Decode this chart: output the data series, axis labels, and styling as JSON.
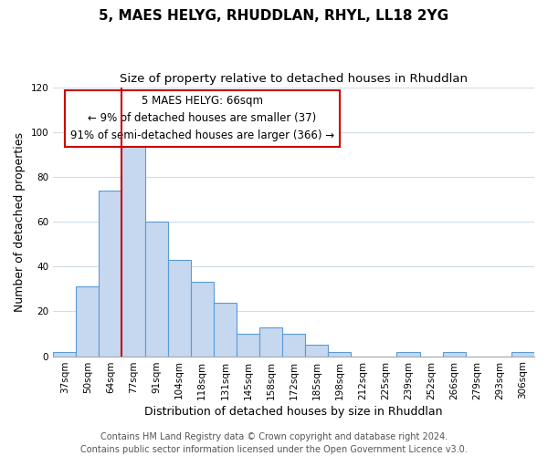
{
  "title": "5, MAES HELYG, RHUDDLAN, RHYL, LL18 2YG",
  "subtitle": "Size of property relative to detached houses in Rhuddlan",
  "xlabel": "Distribution of detached houses by size in Rhuddlan",
  "ylabel": "Number of detached properties",
  "categories": [
    "37sqm",
    "50sqm",
    "64sqm",
    "77sqm",
    "91sqm",
    "104sqm",
    "118sqm",
    "131sqm",
    "145sqm",
    "158sqm",
    "172sqm",
    "185sqm",
    "198sqm",
    "212sqm",
    "225sqm",
    "239sqm",
    "252sqm",
    "266sqm",
    "279sqm",
    "293sqm",
    "306sqm"
  ],
  "values": [
    2,
    31,
    74,
    95,
    60,
    43,
    33,
    24,
    10,
    13,
    10,
    5,
    2,
    0,
    0,
    2,
    0,
    2,
    0,
    0,
    2
  ],
  "bar_color": "#c5d8f0",
  "bar_edge_color": "#5b9bd5",
  "vline_bar_index": 2,
  "vline_color": "#cc0000",
  "annotation_title": "5 MAES HELYG: 66sqm",
  "annotation_line1": "← 9% of detached houses are smaller (37)",
  "annotation_line2": "91% of semi-detached houses are larger (366) →",
  "annotation_box_color": "#ffffff",
  "annotation_box_edge": "#cc0000",
  "ylim": [
    0,
    120
  ],
  "yticks": [
    0,
    20,
    40,
    60,
    80,
    100,
    120
  ],
  "footer_line1": "Contains HM Land Registry data © Crown copyright and database right 2024.",
  "footer_line2": "Contains public sector information licensed under the Open Government Licence v3.0.",
  "background_color": "#ffffff",
  "grid_color": "#d0dce8",
  "title_fontsize": 11,
  "subtitle_fontsize": 9.5,
  "axis_label_fontsize": 9,
  "tick_fontsize": 7.5,
  "footer_fontsize": 7,
  "annotation_fontsize": 8.5
}
